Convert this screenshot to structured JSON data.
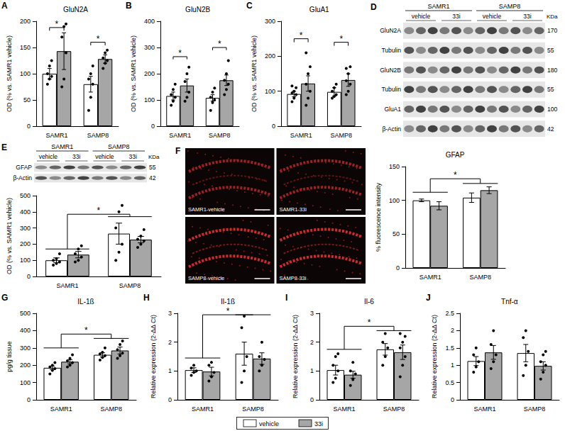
{
  "chart_data": [
    {
      "panel": "A",
      "type": "bar",
      "title": "GluN2A",
      "y_label": "OD (% vs. SAMR1 vehicle)",
      "categories": [
        "SAMR1",
        "SAMP8"
      ],
      "series": [
        {
          "name": "vehicle",
          "color": "#ffffff",
          "values": [
            100,
            80
          ],
          "errors": [
            10,
            15
          ],
          "points": [
            [
              80,
              90,
              95,
              100,
              115,
              125
            ],
            [
              30,
              55,
              80,
              90,
              100,
              115
            ]
          ]
        },
        {
          "name": "33i",
          "color": "#a6a6a6",
          "values": [
            143,
            128
          ],
          "errors": [
            35,
            8
          ],
          "points": [
            [
              75,
              90,
              140,
              170,
              190,
              195
            ],
            [
              110,
              120,
              125,
              130,
              140,
              145
            ]
          ]
        }
      ],
      "ylim": [
        0,
        200
      ],
      "yticks": [
        0,
        50,
        100,
        150,
        200
      ],
      "grid": false,
      "legend": "bottom",
      "brackets": [
        {
          "from": [
            0,
            0
          ],
          "to": [
            0,
            1
          ],
          "y": 188,
          "y_left": 182,
          "y_right": 182,
          "label": "*"
        },
        {
          "from": [
            1,
            0
          ],
          "to": [
            1,
            1
          ],
          "y": 160,
          "y_left": 154,
          "y_right": 154,
          "label": "*"
        }
      ]
    },
    {
      "panel": "B",
      "type": "bar",
      "title": "GluN2B",
      "y_label": "OD (% vs. SAMR1 vehicle)",
      "categories": [
        "SAMR1",
        "SAMP8"
      ],
      "series": [
        {
          "name": "vehicle",
          "color": "#ffffff",
          "values": [
            115,
            108
          ],
          "errors": [
            15,
            12
          ],
          "points": [
            [
              80,
              95,
              110,
              120,
              140,
              160
            ],
            [
              60,
              90,
              100,
              110,
              130,
              145
            ]
          ]
        },
        {
          "name": "33i",
          "color": "#a6a6a6",
          "values": [
            155,
            175
          ],
          "errors": [
            25,
            20
          ],
          "points": [
            [
              95,
              110,
              130,
              170,
              200,
              225
            ],
            [
              120,
              140,
              160,
              175,
              200,
              250
            ]
          ]
        }
      ],
      "ylim": [
        0,
        400
      ],
      "yticks": [
        0,
        100,
        200,
        300,
        400
      ],
      "grid": false,
      "brackets": [
        {
          "from": [
            0,
            0
          ],
          "to": [
            0,
            1
          ],
          "y": 265,
          "y_left": 255,
          "y_right": 255,
          "label": "*"
        },
        {
          "from": [
            1,
            0
          ],
          "to": [
            1,
            1
          ],
          "y": 300,
          "y_left": 290,
          "y_right": 290,
          "label": "*"
        }
      ]
    },
    {
      "panel": "C",
      "type": "bar",
      "title": "GluA1",
      "y_label": "OD (% vs. SAMR1 vehicle)",
      "categories": [
        "SAMR1",
        "SAMP8"
      ],
      "series": [
        {
          "name": "vehicle",
          "color": "#ffffff",
          "values": [
            92,
            98
          ],
          "errors": [
            8,
            12
          ],
          "points": [
            [
              70,
              80,
              90,
              95,
              100,
              110,
              115
            ],
            [
              80,
              85,
              90,
              100,
              110,
              120
            ]
          ]
        },
        {
          "name": "33i",
          "color": "#a6a6a6",
          "values": [
            122,
            132
          ],
          "errors": [
            22,
            18
          ],
          "points": [
            [
              60,
              80,
              100,
              120,
              150,
              170,
              210
            ],
            [
              90,
              100,
              120,
              130,
              150,
              170,
              165
            ]
          ]
        }
      ],
      "ylim": [
        0,
        300
      ],
      "yticks": [
        0,
        100,
        200,
        300
      ],
      "grid": false,
      "brackets": [
        {
          "from": [
            0,
            0
          ],
          "to": [
            0,
            1
          ],
          "y": 250,
          "y_left": 240,
          "y_right": 240,
          "label": "*"
        },
        {
          "from": [
            1,
            0
          ],
          "to": [
            1,
            1
          ],
          "y": 240,
          "y_left": 230,
          "y_right": 230,
          "label": "*"
        }
      ]
    },
    {
      "type": "bar",
      "y_label": "OD (% vs. SAMR1 vehicle)",
      "categories": [
        "SAMR1",
        "SAMP8"
      ],
      "series": [
        {
          "name": "vehicle",
          "color": "#ffffff",
          "values": [
            100,
            265
          ],
          "errors": [
            15,
            65
          ],
          "points": [
            [
              70,
              80,
              90,
              100,
              110,
              140
            ],
            [
              100,
              150,
              200,
              300,
              400,
              440
            ]
          ]
        },
        {
          "name": "33i",
          "color": "#a6a6a6",
          "values": [
            135,
            228
          ],
          "errors": [
            20,
            20
          ],
          "points": [
            [
              90,
              100,
              120,
              140,
              170,
              190
            ],
            [
              180,
              200,
              220,
              230,
              250,
              290
            ]
          ]
        }
      ],
      "ylim": [
        0,
        500
      ],
      "yticks": [
        0,
        100,
        200,
        300,
        400,
        500
      ],
      "grid": false,
      "brackets": [
        {
          "from": [
            0
          ],
          "to": [
            1
          ],
          "y": 385,
          "y_left": 170,
          "y_right": 370,
          "label": "*"
        }
      ]
    },
    {
      "type": "bar",
      "title": "GFAP",
      "y_label": "% fluorescence intensity",
      "categories": [
        "SAMR1",
        "SAMP8"
      ],
      "series": [
        {
          "name": "vehicle",
          "color": "#ffffff",
          "values": [
            100,
            104
          ],
          "errors": [
            2,
            7
          ]
        },
        {
          "name": "33i",
          "color": "#a6a6a6",
          "values": [
            92,
            115
          ],
          "errors": [
            6,
            5
          ]
        }
      ],
      "ylim": [
        0,
        150
      ],
      "yticks": [
        0,
        50,
        100,
        150
      ],
      "grid": false,
      "brackets": [
        {
          "from": [
            0
          ],
          "to": [
            1
          ],
          "y": 132,
          "y_left": 112,
          "y_right": 125,
          "label": "*"
        }
      ]
    },
    {
      "panel": "G",
      "type": "bar",
      "title": "IL-1ß",
      "y_label": "pg/g tissue",
      "categories": [
        "SAMR1",
        "SAMP8"
      ],
      "series": [
        {
          "name": "vehicle",
          "color": "#ffffff",
          "values": [
            185,
            260
          ],
          "errors": [
            10,
            12
          ],
          "points": [
            [
              150,
              170,
              180,
              190,
              200,
              215
            ],
            [
              230,
              245,
              255,
              265,
              275,
              300
            ]
          ]
        },
        {
          "name": "33i",
          "color": "#a6a6a6",
          "values": [
            220,
            285
          ],
          "errors": [
            12,
            20
          ],
          "points": [
            [
              190,
              200,
              215,
              225,
              240,
              260
            ],
            [
              240,
              255,
              270,
              290,
              320,
              340
            ]
          ]
        }
      ],
      "ylim": [
        0,
        500
      ],
      "yticks": [
        0,
        100,
        200,
        300,
        400,
        500
      ],
      "grid": false,
      "brackets": [
        {
          "from": [
            0
          ],
          "to": [
            1
          ],
          "y": 380,
          "y_left": 300,
          "y_right": 355,
          "label": "*"
        }
      ]
    },
    {
      "panel": "H",
      "type": "bar",
      "title": "Il-1ß",
      "y_label": "Relative expression (2-ΔΔ Ct)",
      "categories": [
        "SAMR1",
        "SAMP8"
      ],
      "series": [
        {
          "name": "vehicle",
          "color": "#ffffff",
          "values": [
            1.03,
            1.6
          ],
          "errors": [
            0.08,
            0.4
          ],
          "points": [
            [
              0.85,
              0.95,
              1.0,
              1.1,
              1.2
            ],
            [
              0.6,
              1.0,
              1.5,
              2.5,
              2.9
            ]
          ]
        },
        {
          "name": "33i",
          "color": "#a6a6a6",
          "values": [
            0.98,
            1.43
          ],
          "errors": [
            0.15,
            0.2
          ],
          "points": [
            [
              0.65,
              0.8,
              0.95,
              1.2,
              1.3
            ],
            [
              1.0,
              1.2,
              1.4,
              1.5,
              2.0
            ]
          ]
        }
      ],
      "ylim": [
        0,
        3
      ],
      "yticks": [
        0,
        1,
        2,
        3
      ],
      "grid": false,
      "brackets": [
        {
          "from": [
            0
          ],
          "to": [
            1
          ],
          "y": 2.95,
          "y_left": 1.45,
          "y_right": 2.95,
          "label": "*"
        }
      ]
    },
    {
      "panel": "I",
      "type": "bar",
      "title": "Il-6",
      "y_label": "Relative expression (2-ΔΔ Ct)",
      "categories": [
        "SAMR1",
        "SAMP8"
      ],
      "series": [
        {
          "name": "vehicle",
          "color": "#ffffff",
          "values": [
            1.03,
            1.75
          ],
          "errors": [
            0.17,
            0.2
          ],
          "points": [
            [
              0.6,
              0.75,
              1.0,
              1.2,
              1.5,
              1.6
            ],
            [
              1.2,
              1.5,
              1.8,
              2.0,
              2.3
            ]
          ]
        },
        {
          "name": "33i",
          "color": "#a6a6a6",
          "values": [
            0.87,
            1.65
          ],
          "errors": [
            0.12,
            0.25
          ],
          "points": [
            [
              0.5,
              0.7,
              0.9,
              1.0,
              1.3
            ],
            [
              0.8,
              1.2,
              1.5,
              1.8,
              2.0,
              2.2,
              2.3
            ]
          ]
        }
      ],
      "ylim": [
        0,
        3
      ],
      "yticks": [
        0,
        1,
        2,
        3
      ],
      "grid": false,
      "brackets": [
        {
          "from": [
            0
          ],
          "to": [
            1
          ],
          "y": 2.55,
          "y_left": 1.75,
          "y_right": 2.4,
          "label": "*"
        }
      ]
    },
    {
      "panel": "J",
      "type": "bar",
      "title": "Tnf-α",
      "y_label": "Relative expression (2-ΔΔ Ct)",
      "categories": [
        "SAMR1",
        "SAMP8"
      ],
      "series": [
        {
          "name": "vehicle",
          "color": "#ffffff",
          "values": [
            1.12,
            1.35
          ],
          "errors": [
            0.13,
            0.25
          ],
          "points": [
            [
              0.8,
              0.95,
              1.1,
              1.3,
              1.5
            ],
            [
              0.7,
              1.0,
              1.4,
              1.8,
              2.0
            ]
          ]
        },
        {
          "name": "33i",
          "color": "#a6a6a6",
          "values": [
            1.37,
            0.98
          ],
          "errors": [
            0.2,
            0.12
          ],
          "points": [
            [
              0.9,
              1.1,
              1.3,
              1.6,
              2.0
            ],
            [
              0.6,
              0.8,
              1.0,
              1.1,
              1.3,
              1.4
            ]
          ]
        }
      ],
      "ylim": [
        0,
        2.5
      ],
      "yticks": [
        0,
        0.5,
        1,
        1.5,
        2,
        2.5
      ],
      "grid": false,
      "brackets": []
    }
  ],
  "blots": [
    {
      "panel": "D",
      "groups": [
        "SAMR1",
        "SAMP8"
      ],
      "conditions": [
        "vehicle",
        "33i"
      ],
      "unit": "KDa",
      "rows": [
        {
          "name": "GluN2A",
          "kda": 170
        },
        {
          "name": "Tubulin",
          "kda": 55
        },
        {
          "name": "GluN2B",
          "kda": 180
        },
        {
          "name": "Tubulin",
          "kda": 55
        },
        {
          "name": "GluA1",
          "kda": 100
        },
        {
          "name": "β-Actin",
          "kda": 42
        }
      ]
    },
    {
      "panel": "E",
      "groups": [
        "SAMR1",
        "SAMP8"
      ],
      "conditions": [
        "vehicle",
        "33i"
      ],
      "unit": "KDa",
      "rows": [
        {
          "name": "GFAP",
          "kda": 55
        },
        {
          "name": "β-Actin",
          "kda": 42
        }
      ]
    }
  ],
  "images": {
    "panel": "F",
    "labels": [
      "SAMR1-vehicle",
      "SAMR1-33i",
      "SAMP8-vehicle",
      "SAMP8-33i"
    ]
  }
}
